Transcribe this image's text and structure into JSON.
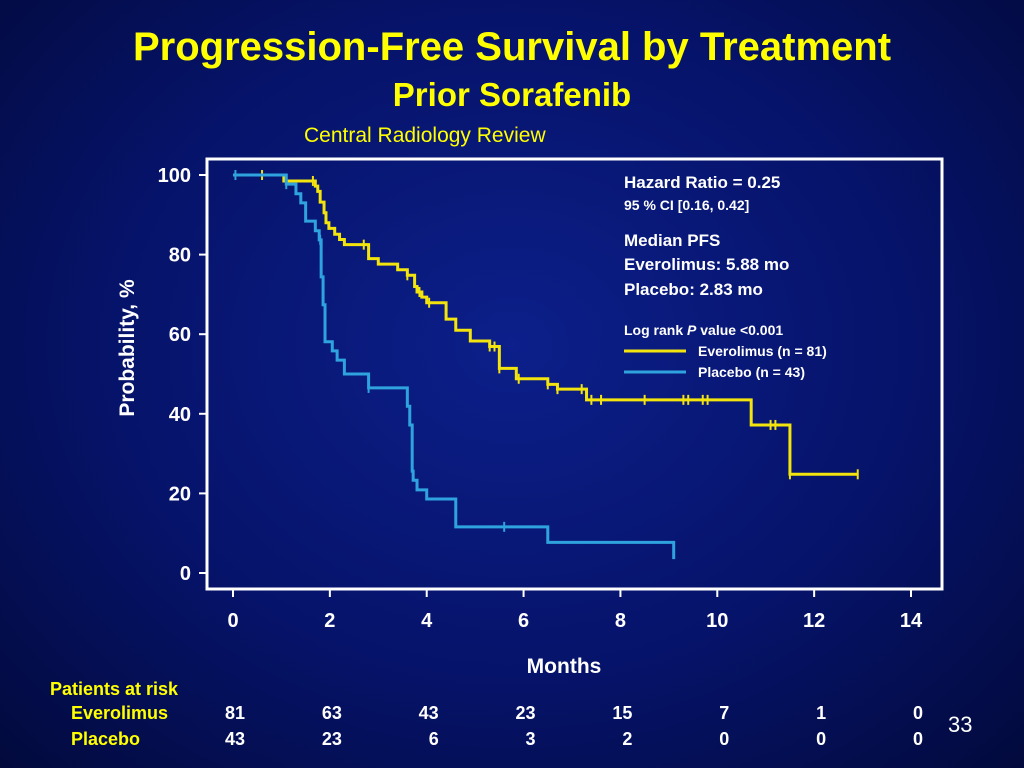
{
  "slide": {
    "title": "Progression-Free Survival by Treatment",
    "subtitle": "Prior Sorafenib",
    "review": "Central Radiology Review",
    "page_number": "33"
  },
  "annotations": {
    "hr": "Hazard Ratio = 0.25",
    "ci": "95 % CI [0.16, 0.42]",
    "median_title": "Median PFS",
    "median_evero": "Everolimus: 5.88 mo",
    "median_placebo": "Placebo: 2.83 mo",
    "logrank_a": "Log rank ",
    "logrank_p": "P",
    "logrank_b": " value <0.001"
  },
  "colors": {
    "everolimus": "#f2e40c",
    "placebo": "#2ea3de",
    "title": "#ffff00",
    "background": "#06136a"
  },
  "risk_table": {
    "header": "Patients at risk",
    "rows": [
      {
        "label": "Everolimus",
        "values": [
          "81",
          "63",
          "43",
          "23",
          "15",
          "7",
          "1",
          "0"
        ]
      },
      {
        "label": "Placebo",
        "values": [
          "43",
          "23",
          "6",
          "3",
          "2",
          "0",
          "0",
          "0"
        ]
      }
    ]
  },
  "chart_data": {
    "type": "line",
    "step": true,
    "xlabel": "Months",
    "ylabel": "Probability, %",
    "xlim": [
      0,
      14
    ],
    "ylim": [
      0,
      100
    ],
    "xticks": [
      "0",
      "2",
      "4",
      "6",
      "8",
      "10",
      "12",
      "14"
    ],
    "yticks": [
      "0",
      "20",
      "40",
      "60",
      "80",
      "100"
    ],
    "grid": false,
    "legend_position": "top-right inside",
    "series": [
      {
        "name": "Everolimus (n = 81)",
        "color": "#f2e40c",
        "x": [
          0,
          1.05,
          1.7,
          1.75,
          1.8,
          1.88,
          1.92,
          1.98,
          2.1,
          2.2,
          2.3,
          2.8,
          3.0,
          3.4,
          3.6,
          3.75,
          3.8,
          3.9,
          4.0,
          4.4,
          4.6,
          4.9,
          5.3,
          5.5,
          5.5,
          5.85,
          6.5,
          6.7,
          7.3,
          7.6,
          10.7,
          11.0,
          11.3,
          11.5,
          12.9
        ],
        "y": [
          100,
          98.5,
          97.2,
          95.9,
          93.2,
          90.5,
          88,
          86.6,
          85.1,
          83.8,
          82.5,
          79,
          77.6,
          76.2,
          74.8,
          72,
          70.6,
          69.3,
          67.9,
          63.8,
          61,
          58.3,
          56.9,
          51.4,
          51.4,
          48.8,
          47.4,
          46.2,
          43.5,
          43.5,
          37.2,
          37.2,
          37.2,
          24.8,
          24.8
        ]
      },
      {
        "name": "Placebo  (n = 43)",
        "color": "#2ea3de",
        "x": [
          0,
          1.1,
          1.3,
          1.4,
          1.5,
          1.7,
          1.78,
          1.82,
          1.86,
          1.9,
          1.94,
          2.05,
          2.15,
          2.3,
          2.8,
          3.6,
          3.65,
          3.7,
          3.72,
          3.8,
          4.0,
          4.6,
          6.5,
          9.1,
          9.1
        ],
        "y": [
          100,
          97.7,
          95.3,
          93,
          88.4,
          86,
          83.7,
          74.4,
          67.4,
          58.1,
          58.1,
          55.8,
          53.5,
          50,
          46.5,
          41.9,
          37.2,
          25.6,
          23.3,
          20.9,
          18.6,
          11.6,
          7.7,
          7.7,
          3.5
        ]
      }
    ],
    "censor_marks": {
      "Everolimus": [
        0.6,
        1.65,
        2.7,
        3.6,
        3.85,
        4.05,
        5.3,
        5.4,
        5.5,
        5.9,
        6.5,
        6.7,
        7.2,
        7.4,
        7.6,
        8.5,
        9.3,
        9.4,
        9.7,
        9.8,
        11.1,
        11.2,
        11.5,
        12.9
      ],
      "Placebo": [
        0.05,
        1.1,
        1.8,
        2.8,
        5.6
      ]
    }
  }
}
